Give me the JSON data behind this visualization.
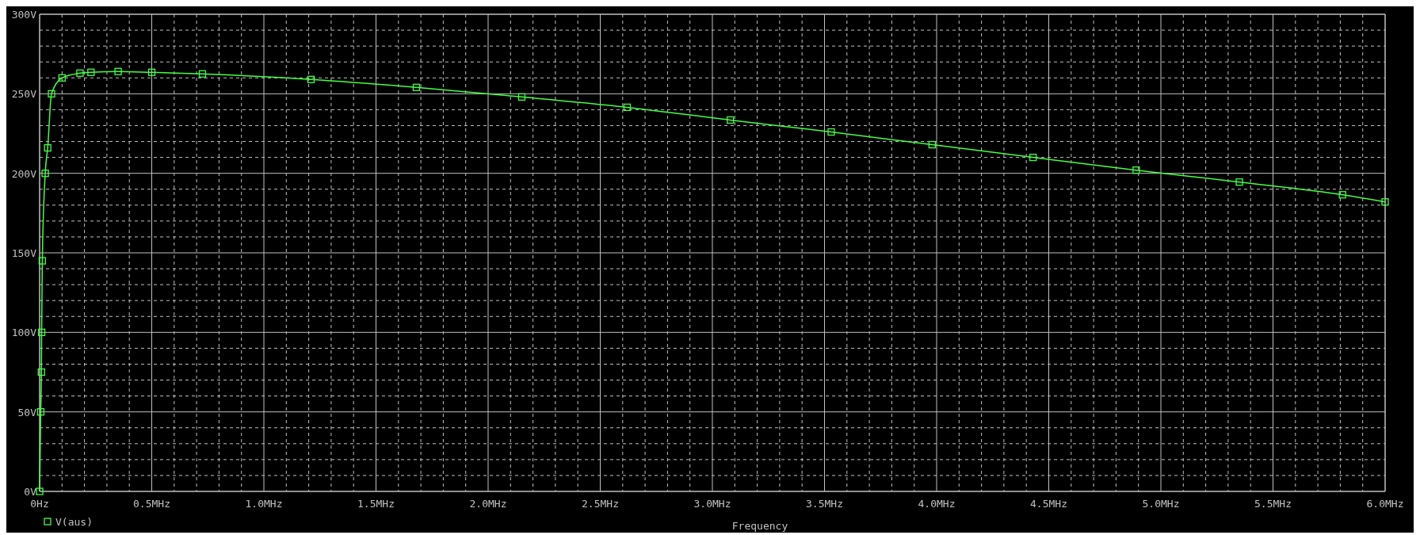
{
  "chart_data": {
    "type": "line",
    "xlabel": "Frequency",
    "xlim": [
      0,
      6
    ],
    "xticks": [
      {
        "value": 0,
        "label": "0Hz"
      },
      {
        "value": 0.5,
        "label": "0.5MHz"
      },
      {
        "value": 1,
        "label": "1.0MHz"
      },
      {
        "value": 1.5,
        "label": "1.5MHz"
      },
      {
        "value": 2,
        "label": "2.0MHz"
      },
      {
        "value": 2.5,
        "label": "2.5MHz"
      },
      {
        "value": 3,
        "label": "3.0MHz"
      },
      {
        "value": 3.5,
        "label": "3.5MHz"
      },
      {
        "value": 4,
        "label": "4.0MHz"
      },
      {
        "value": 4.5,
        "label": "4.5MHz"
      },
      {
        "value": 5,
        "label": "5.0MHz"
      },
      {
        "value": 5.5,
        "label": "5.5MHz"
      },
      {
        "value": 6,
        "label": "6.0MHz"
      }
    ],
    "ylim": [
      0,
      300
    ],
    "yticks": [
      {
        "value": 0,
        "label": "0V"
      },
      {
        "value": 50,
        "label": "50V"
      },
      {
        "value": 100,
        "label": "100V"
      },
      {
        "value": 150,
        "label": "150V"
      },
      {
        "value": 200,
        "label": "200V"
      },
      {
        "value": 250,
        "label": "250V"
      },
      {
        "value": 300,
        "label": "300V"
      }
    ],
    "grid": true,
    "legend": "bottom left",
    "marker": "square",
    "line_style": "solid",
    "series": [
      {
        "name": "V(aus)",
        "color": "#44ff44",
        "x": [
          0,
          0.005,
          0.008,
          0.009,
          0.012,
          0.025,
          0.036,
          0.053,
          0.1,
          0.18,
          0.229,
          0.35,
          0.5,
          0.726,
          1.21,
          1.68,
          2.15,
          2.62,
          3.08,
          3.53,
          3.98,
          4.43,
          4.89,
          5.35,
          5.81,
          6.0
        ],
        "values": [
          0,
          50,
          75,
          100,
          145,
          200,
          216,
          250,
          260,
          263,
          263.5,
          264,
          263.5,
          262.5,
          259,
          254,
          248,
          241.5,
          233.5,
          226,
          218,
          210,
          202,
          194.5,
          186.5,
          182
        ]
      }
    ]
  }
}
